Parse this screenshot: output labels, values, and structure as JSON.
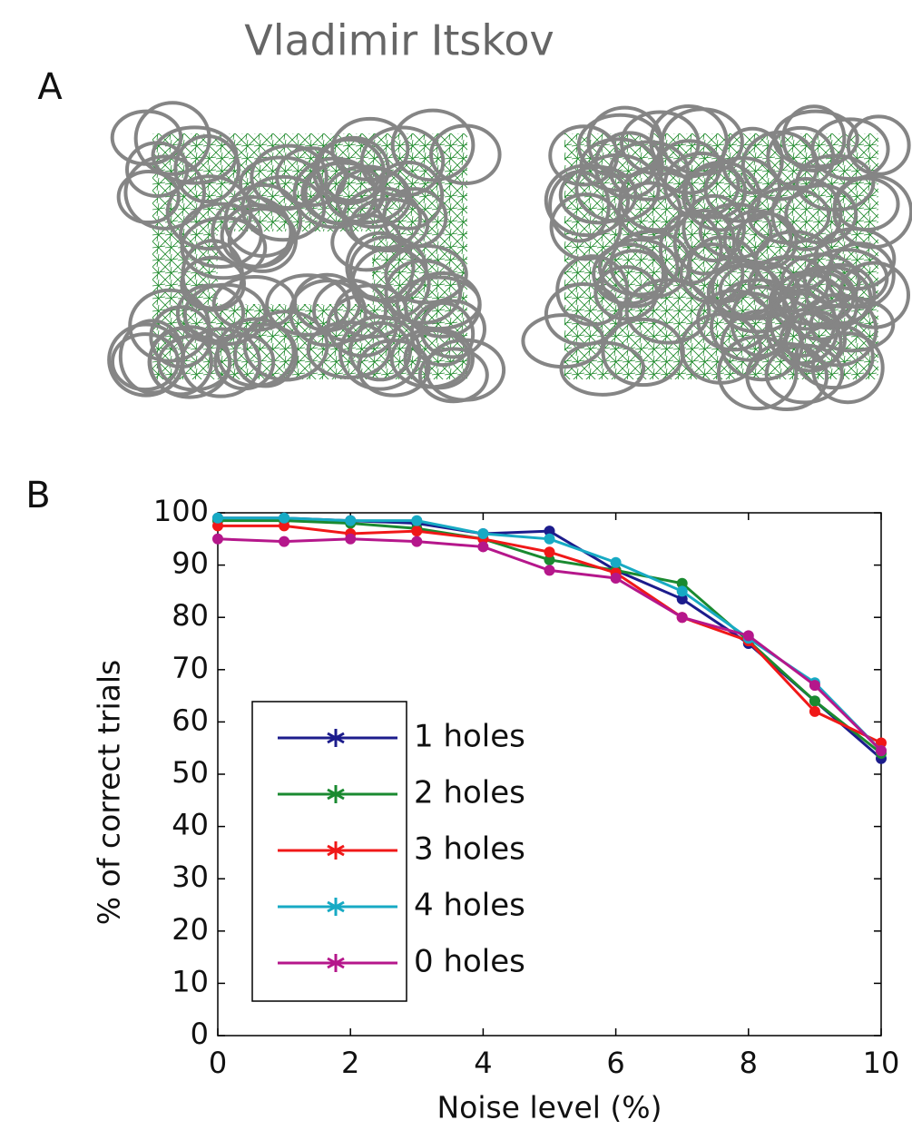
{
  "header": "Vladimir Itskov",
  "panels": [
    "A",
    "B"
  ],
  "chart_data": {
    "type": "line",
    "x_label": "Noise level (%)",
    "y_label": "% of correct trials",
    "x": [
      0,
      1,
      2,
      3,
      4,
      5,
      6,
      7,
      8,
      9,
      10
    ],
    "series": [
      {
        "name": "1 holes",
        "color": "#1c1c8c",
        "values": [
          99,
          99,
          98.5,
          98,
          96,
          96.5,
          89,
          83.5,
          75,
          64,
          53
        ]
      },
      {
        "name": "2 holes",
        "color": "#1a8a30",
        "values": [
          98.5,
          98.5,
          98,
          97,
          95,
          91,
          89,
          86.5,
          75.5,
          64,
          54
        ]
      },
      {
        "name": "3 holes",
        "color": "#f01818",
        "values": [
          97.5,
          97.5,
          96,
          96.5,
          95,
          92.5,
          88.5,
          80,
          75.5,
          62,
          56
        ]
      },
      {
        "name": "4 holes",
        "color": "#17aac4",
        "values": [
          99,
          99,
          98.5,
          98.5,
          96,
          95,
          90.5,
          85,
          76,
          67.5,
          54.5
        ]
      },
      {
        "name": "0 holes",
        "color": "#b5178b",
        "values": [
          95,
          94.5,
          95,
          94.5,
          93.5,
          89,
          87.5,
          80,
          76.5,
          67,
          54.5
        ]
      }
    ],
    "xlim": [
      0,
      10
    ],
    "xticks": [
      0,
      2,
      4,
      6,
      8,
      10
    ],
    "ylim": [
      0,
      100
    ],
    "yticks": [
      0,
      10,
      20,
      30,
      40,
      50,
      60,
      70,
      80,
      90,
      100
    ],
    "legend": "lower left",
    "grid": false
  }
}
